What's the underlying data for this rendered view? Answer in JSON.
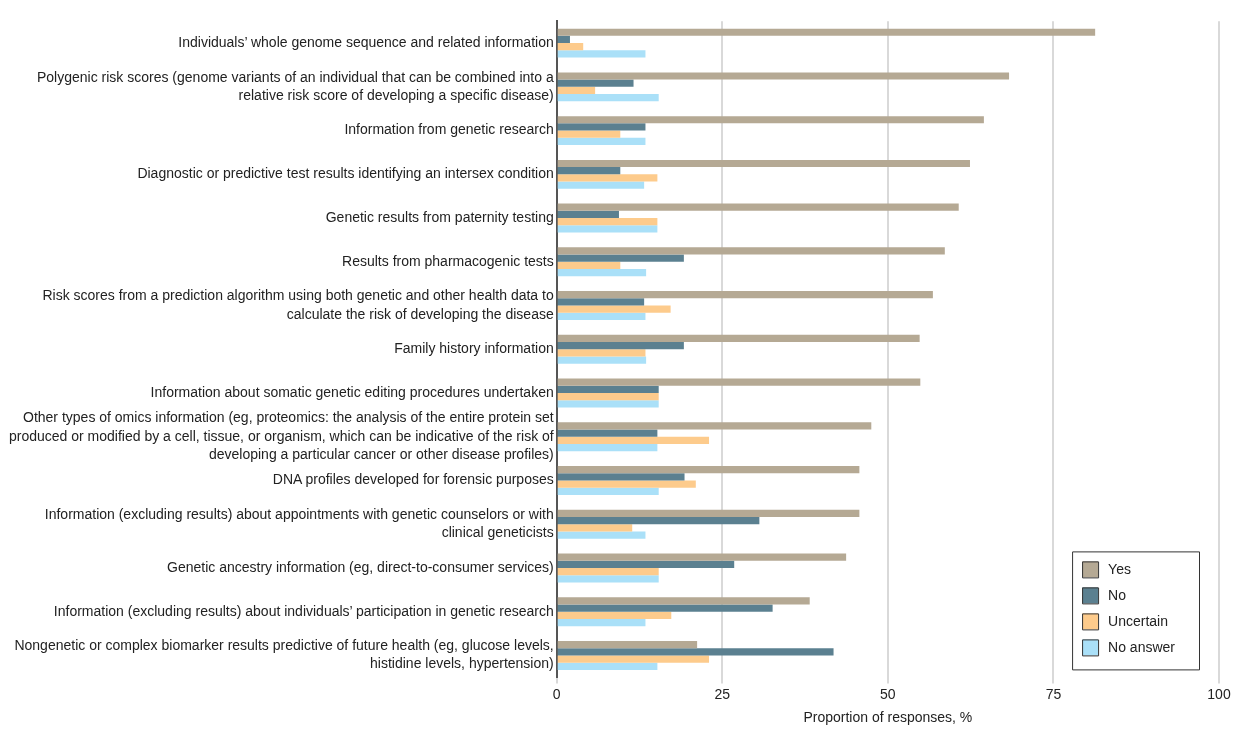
{
  "chart_data": {
    "type": "bar",
    "orientation": "horizontal",
    "xlabel": "Proportion of responses, %",
    "categories": [
      "Individuals’ whole genome sequence and related information",
      "Polygenic risk scores (genome variants of an individual that can be combined into a relative risk score of developing a specific disease)",
      "Information from genetic research",
      "Diagnostic or predictive test results identifying an intersex condition",
      "Genetic results from paternity testing",
      "Results from pharmacogenic tests",
      "Risk scores from a prediction algorithm using both genetic and other health data to calculate the risk of developing the disease",
      "Family history information",
      "Information about somatic genetic editing procedures undertaken",
      "Other types of omics information (eg, proteomics: the analysis of the entire protein set produced or modified by a cell, tissue, or organism, which can be indicative of the risk of developing a particular cancer or other disease profiles)",
      "DNA profiles developed for forensic purposes",
      "Information (excluding results) about appointments with genetic counselors or with clinical geneticists",
      "Genetic ancestry information (eg, direct-to-consumer services)",
      "Information (excluding results) about individuals’ participation in genetic research",
      "Nongenetic or complex biomarker results predictive of future health (eg, glucose levels, histidine levels, hypertension)"
    ],
    "series": [
      {
        "name": "Yes",
        "color": "#b5a994",
        "values": [
          81.3,
          68.3,
          64.5,
          62.4,
          60.7,
          58.6,
          56.8,
          54.8,
          54.9,
          47.5,
          45.7,
          45.7,
          43.7,
          38.2,
          21.2
        ]
      },
      {
        "name": "No",
        "color": "#5b8090",
        "values": [
          2.0,
          11.6,
          13.4,
          9.6,
          9.4,
          19.2,
          13.2,
          19.2,
          15.4,
          15.2,
          19.3,
          30.6,
          26.8,
          32.6,
          41.8
        ]
      },
      {
        "name": "Uncertain",
        "color": "#fdcb8c",
        "values": [
          4.0,
          5.8,
          9.6,
          15.2,
          15.2,
          9.6,
          17.2,
          13.4,
          15.4,
          23.0,
          21.0,
          11.4,
          15.4,
          17.3,
          23.0
        ]
      },
      {
        "name": "No answer",
        "color": "#aae0f8",
        "values": [
          13.4,
          15.4,
          13.4,
          13.2,
          15.2,
          13.5,
          13.4,
          13.5,
          15.4,
          15.2,
          15.4,
          13.4,
          15.4,
          13.4,
          15.2
        ]
      }
    ],
    "xlim": [
      0,
      100
    ],
    "xticks": [
      0,
      25,
      50,
      75,
      100
    ],
    "grid": "x",
    "legend": "bottom right"
  }
}
